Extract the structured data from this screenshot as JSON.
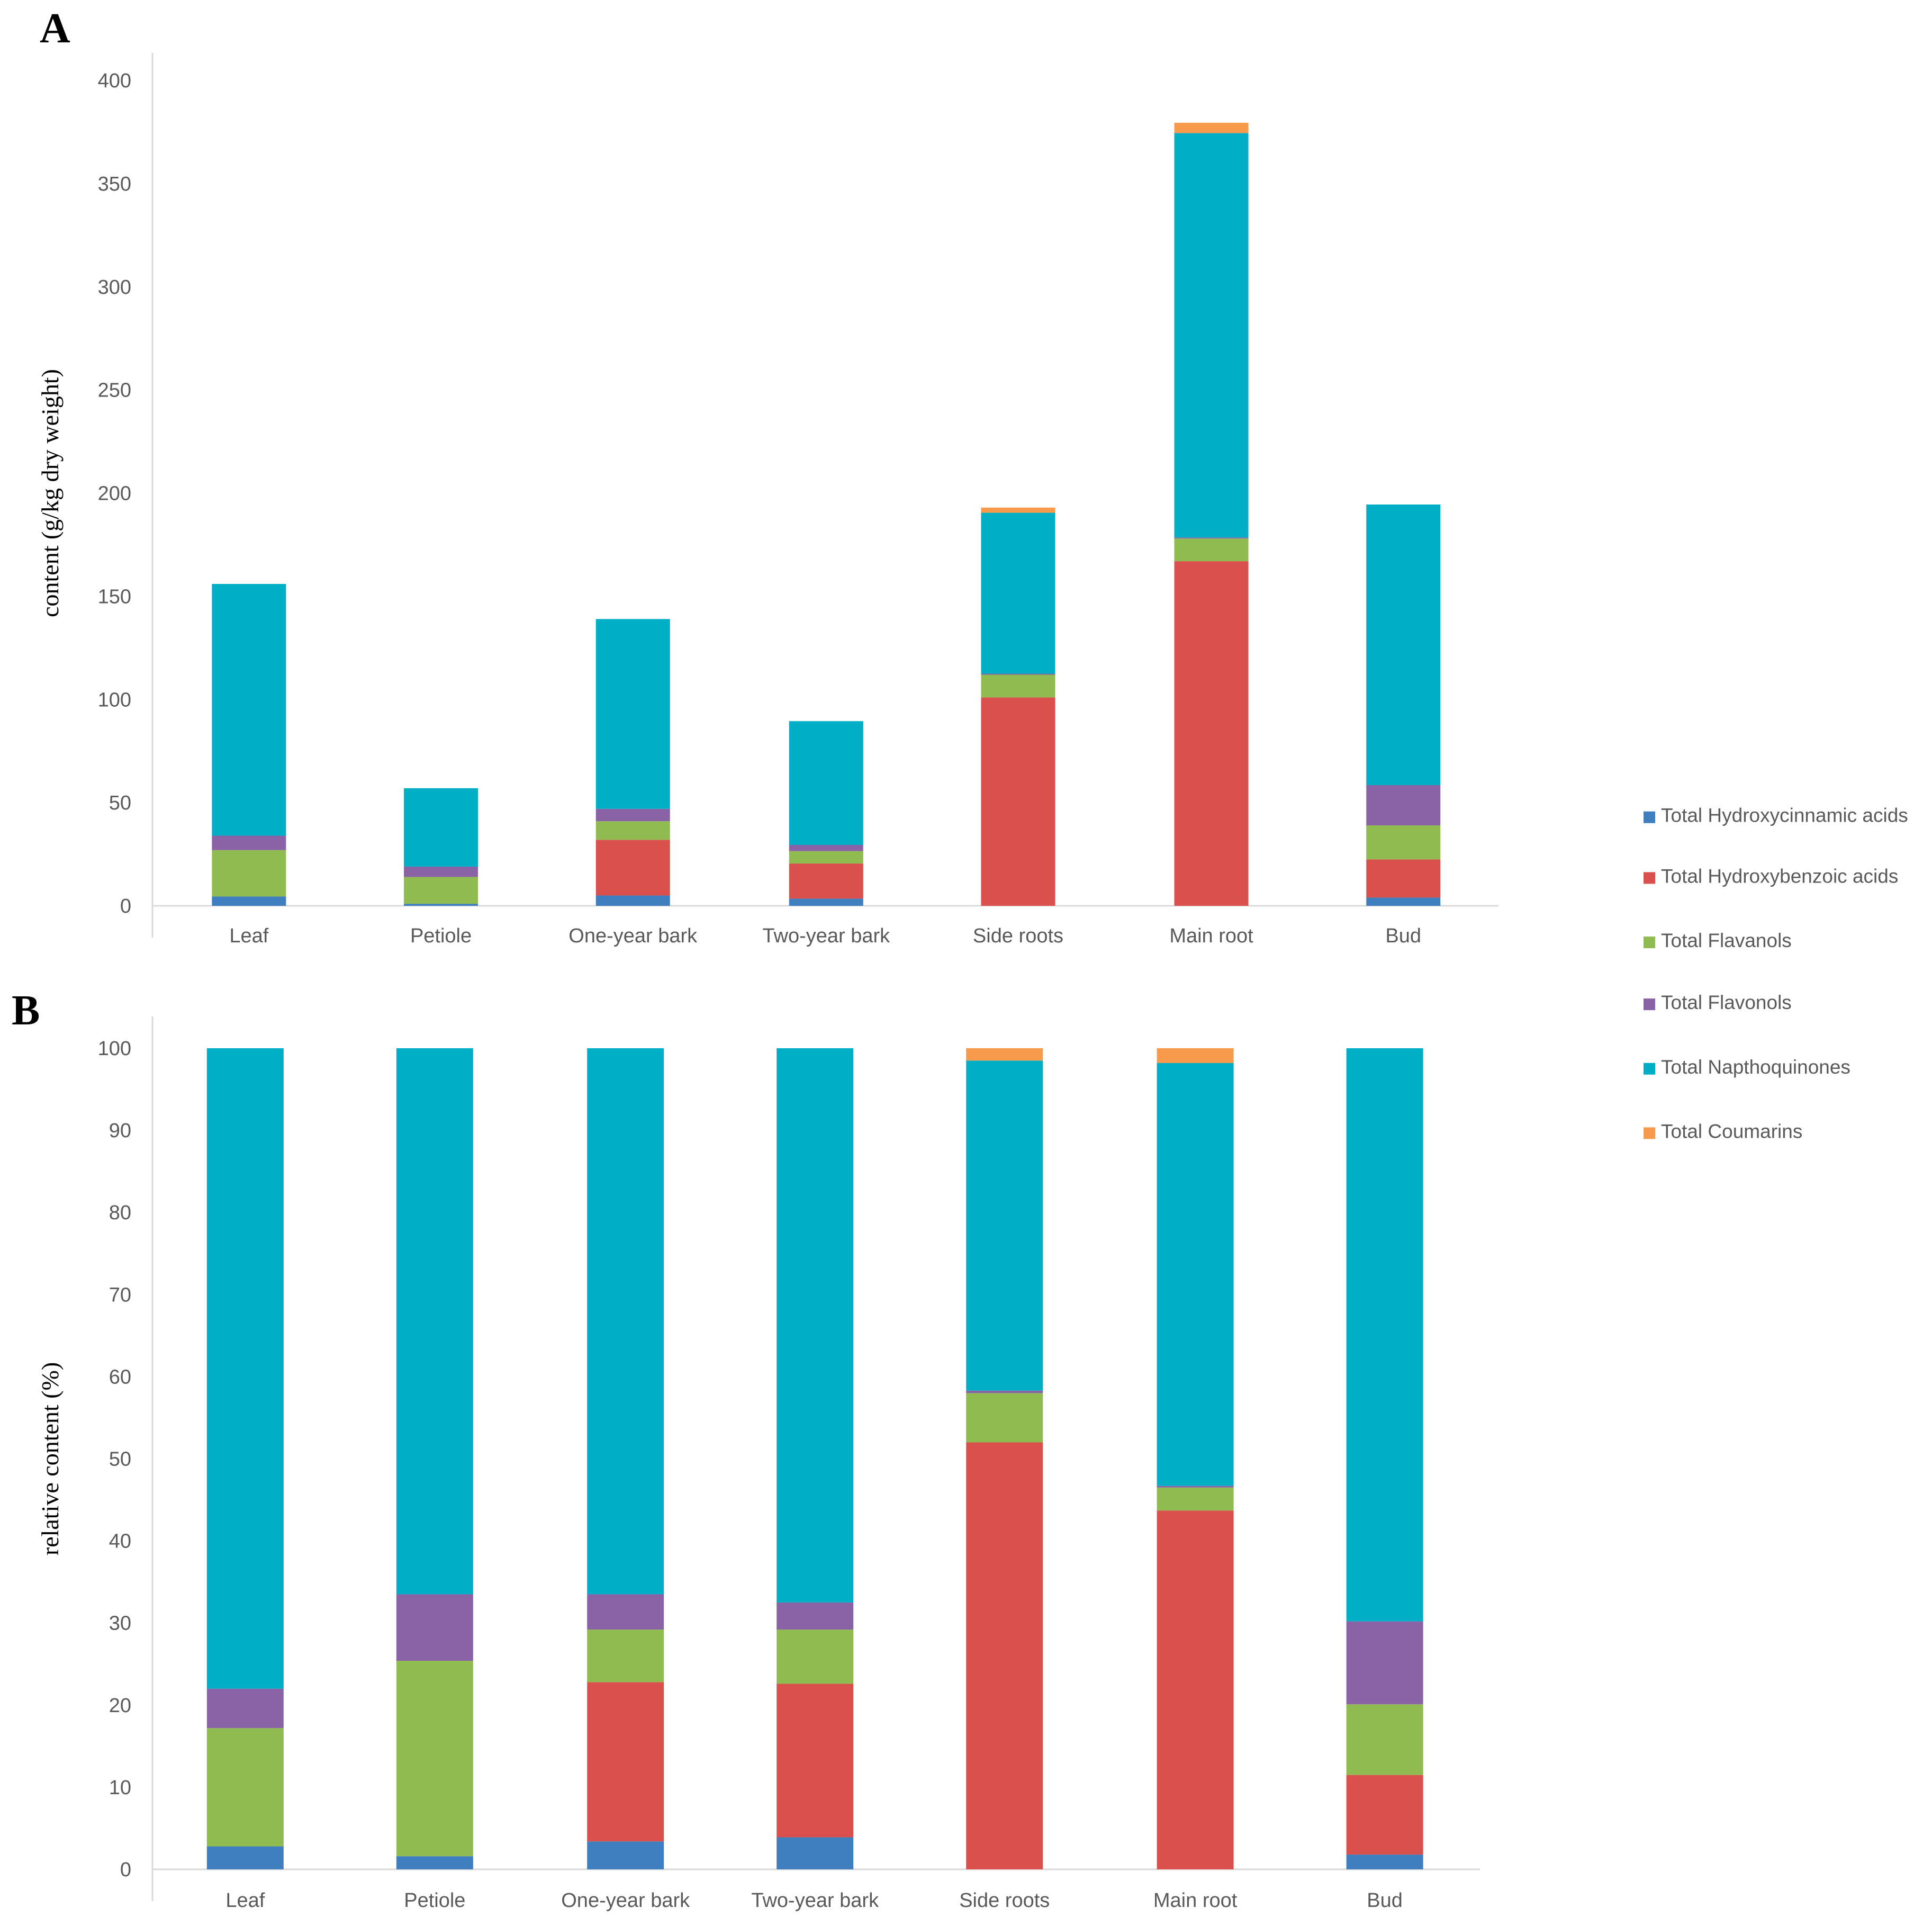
{
  "colors": [
    "#3f7fbf",
    "#d9504d",
    "#8fbb50",
    "#8a62a6",
    "#00aec6",
    "#f79a4c"
  ],
  "legend": [
    "Total Hydroxycinnamic acids",
    "Total Hydroxybenzoic acids",
    "Total Flavanols",
    "Total Flavonols",
    "Total Napthoquinones",
    "Total Coumarins"
  ],
  "chart_data": [
    {
      "panel": "A",
      "type": "bar",
      "stacked": true,
      "ylabel": "content (g/kg dry weight)",
      "ylim": [
        0,
        400
      ],
      "yticks": [
        0,
        50,
        100,
        150,
        200,
        250,
        300,
        350,
        400
      ],
      "categories": [
        "Leaf",
        "Petiole",
        "One-year bark",
        "Two-year bark",
        "Side roots",
        "Main root",
        "Bud"
      ],
      "series": [
        {
          "name": "Total Hydroxycinnamic acids",
          "values": [
            4.5,
            1,
            5,
            3.5,
            0,
            0,
            4
          ]
        },
        {
          "name": "Total Hydroxybenzoic acids",
          "values": [
            0,
            0,
            27,
            17,
            101,
            167,
            18.5
          ]
        },
        {
          "name": "Total Flavanols",
          "values": [
            22.5,
            13,
            9,
            6,
            11,
            11,
            16.5
          ]
        },
        {
          "name": "Total Flavonols",
          "values": [
            7,
            5,
            6,
            3,
            0.5,
            0.5,
            19.5
          ]
        },
        {
          "name": "Total Napthoquinones",
          "values": [
            122,
            38,
            92,
            60,
            78,
            196,
            136
          ]
        },
        {
          "name": "Total Coumarins",
          "values": [
            0,
            0,
            0,
            0,
            2.5,
            5,
            0
          ]
        }
      ]
    },
    {
      "panel": "B",
      "type": "bar",
      "stacked": true,
      "ylabel": "relative content (%)",
      "ylim": [
        0,
        100
      ],
      "yticks": [
        0,
        10,
        20,
        30,
        40,
        50,
        60,
        70,
        80,
        90,
        100
      ],
      "categories": [
        "Leaf",
        "Petiole",
        "One-year bark",
        "Two-year bark",
        "Side roots",
        "Main root",
        "Bud"
      ],
      "series": [
        {
          "name": "Total Hydroxycinnamic acids",
          "values": [
            2.8,
            1.6,
            3.4,
            3.9,
            0,
            0,
            1.8
          ]
        },
        {
          "name": "Total Hydroxybenzoic acids",
          "values": [
            0,
            0,
            19.4,
            18.7,
            52,
            43.7,
            9.7
          ]
        },
        {
          "name": "Total Flavanols",
          "values": [
            14.4,
            23.8,
            6.4,
            6.6,
            6,
            2.8,
            8.6
          ]
        },
        {
          "name": "Total Flavonols",
          "values": [
            4.8,
            8.1,
            4.3,
            3.3,
            0.3,
            0.2,
            10.1
          ]
        },
        {
          "name": "Total Napthoquinones",
          "values": [
            78,
            66.5,
            66.5,
            67.5,
            40.2,
            51.5,
            69.8
          ]
        },
        {
          "name": "Total Coumarins",
          "values": [
            0,
            0,
            0,
            0,
            1.5,
            1.8,
            0
          ]
        }
      ]
    }
  ]
}
